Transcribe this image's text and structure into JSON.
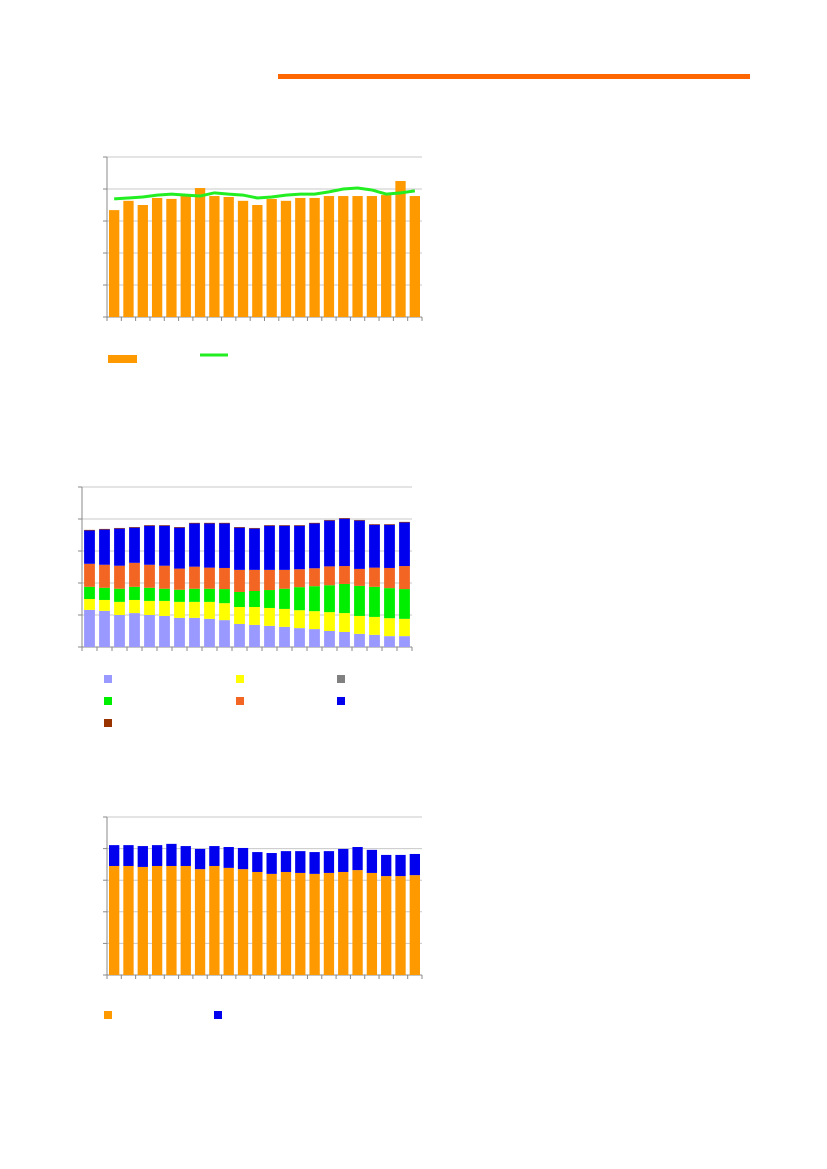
{
  "chart_data": [
    {
      "type": "bar",
      "categories": [
        null,
        null,
        null,
        null,
        null,
        null,
        null,
        null,
        null,
        null,
        null,
        null,
        null,
        null,
        null,
        null,
        null,
        null,
        null,
        null,
        null,
        null
      ],
      "ylim": [
        0,
        5
      ],
      "yticks": [
        0,
        1,
        2,
        3,
        4,
        5
      ],
      "grid": true,
      "series": [
        {
          "type": "bar",
          "color": "#ff9900",
          "values": [
            3.34,
            3.63,
            3.5,
            3.72,
            3.69,
            3.78,
            4.03,
            3.78,
            3.75,
            3.63,
            3.5,
            3.69,
            3.63,
            3.72,
            3.72,
            3.78,
            3.78,
            3.78,
            3.78,
            3.81,
            4.25,
            3.78
          ]
        },
        {
          "type": "line",
          "color": "#22ee22",
          "values": [
            3.69,
            3.72,
            3.75,
            3.81,
            3.84,
            3.81,
            3.78,
            3.88,
            3.84,
            3.81,
            3.72,
            3.75,
            3.81,
            3.84,
            3.84,
            3.91,
            4.0,
            4.03,
            3.97,
            3.84,
            3.88,
            3.94
          ]
        }
      ]
    },
    {
      "type": "stacked_bar",
      "categories": [
        null,
        null,
        null,
        null,
        null,
        null,
        null,
        null,
        null,
        null,
        null,
        null,
        null,
        null,
        null,
        null,
        null,
        null,
        null,
        null,
        null,
        null
      ],
      "ylim": [
        0,
        5
      ],
      "yticks": [
        0,
        1,
        2,
        3,
        4,
        5
      ],
      "grid": true,
      "series": [
        {
          "color": "#9999ff",
          "values": [
            1.16,
            1.13,
            1.0,
            1.06,
            1.0,
            0.97,
            0.91,
            0.91,
            0.88,
            0.84,
            0.72,
            0.69,
            0.66,
            0.63,
            0.59,
            0.56,
            0.5,
            0.47,
            0.41,
            0.38,
            0.34,
            0.34
          ]
        },
        {
          "color": "#ffff00",
          "values": [
            0.34,
            0.34,
            0.41,
            0.41,
            0.44,
            0.47,
            0.5,
            0.5,
            0.53,
            0.53,
            0.53,
            0.56,
            0.56,
            0.56,
            0.56,
            0.56,
            0.59,
            0.59,
            0.56,
            0.56,
            0.56,
            0.54
          ]
        },
        {
          "color": "#808080",
          "values": [
            0,
            0,
            0,
            0,
            0,
            0,
            0,
            0,
            0,
            0,
            0,
            0,
            0,
            0,
            0,
            0,
            0,
            0,
            0,
            0,
            0,
            0
          ]
        },
        {
          "color": "#00ee00",
          "values": [
            0.38,
            0.38,
            0.41,
            0.41,
            0.41,
            0.38,
            0.38,
            0.41,
            0.41,
            0.44,
            0.47,
            0.5,
            0.56,
            0.63,
            0.72,
            0.78,
            0.84,
            0.91,
            0.94,
            0.94,
            0.94,
            0.93
          ]
        },
        {
          "color": "#f26522",
          "values": [
            0.72,
            0.72,
            0.72,
            0.75,
            0.72,
            0.72,
            0.66,
            0.69,
            0.66,
            0.66,
            0.69,
            0.66,
            0.63,
            0.59,
            0.56,
            0.56,
            0.59,
            0.56,
            0.53,
            0.6,
            0.63,
            0.72
          ]
        },
        {
          "color": "#0000ee",
          "values": [
            1.04,
            1.1,
            1.16,
            1.1,
            1.22,
            1.25,
            1.28,
            1.35,
            1.38,
            1.39,
            1.32,
            1.29,
            1.38,
            1.38,
            1.36,
            1.4,
            1.43,
            1.48,
            1.51,
            1.34,
            1.35,
            1.36
          ]
        },
        {
          "color": "#993300",
          "values": [
            0.02,
            0.02,
            0.02,
            0.02,
            0.02,
            0.02,
            0.02,
            0.02,
            0.02,
            0.02,
            0.02,
            0.02,
            0.02,
            0.02,
            0.02,
            0.02,
            0.02,
            0.02,
            0.02,
            0.02,
            0.02,
            0.02
          ]
        }
      ]
    },
    {
      "type": "stacked_bar",
      "categories": [
        null,
        null,
        null,
        null,
        null,
        null,
        null,
        null,
        null,
        null,
        null,
        null,
        null,
        null,
        null,
        null,
        null,
        null,
        null,
        null,
        null,
        null
      ],
      "ylim": [
        0,
        5
      ],
      "yticks": [
        0,
        1,
        2,
        3,
        4,
        5
      ],
      "grid": true,
      "series": [
        {
          "color": "#ff9900",
          "values": [
            3.45,
            3.45,
            3.42,
            3.45,
            3.45,
            3.45,
            3.35,
            3.45,
            3.39,
            3.35,
            3.26,
            3.2,
            3.26,
            3.23,
            3.2,
            3.23,
            3.26,
            3.32,
            3.23,
            3.13,
            3.13,
            3.16
          ]
        },
        {
          "color": "#0000ee",
          "values": [
            0.66,
            0.66,
            0.66,
            0.66,
            0.7,
            0.63,
            0.64,
            0.63,
            0.66,
            0.67,
            0.63,
            0.66,
            0.66,
            0.69,
            0.69,
            0.69,
            0.73,
            0.73,
            0.73,
            0.67,
            0.67,
            0.67
          ]
        }
      ]
    }
  ]
}
